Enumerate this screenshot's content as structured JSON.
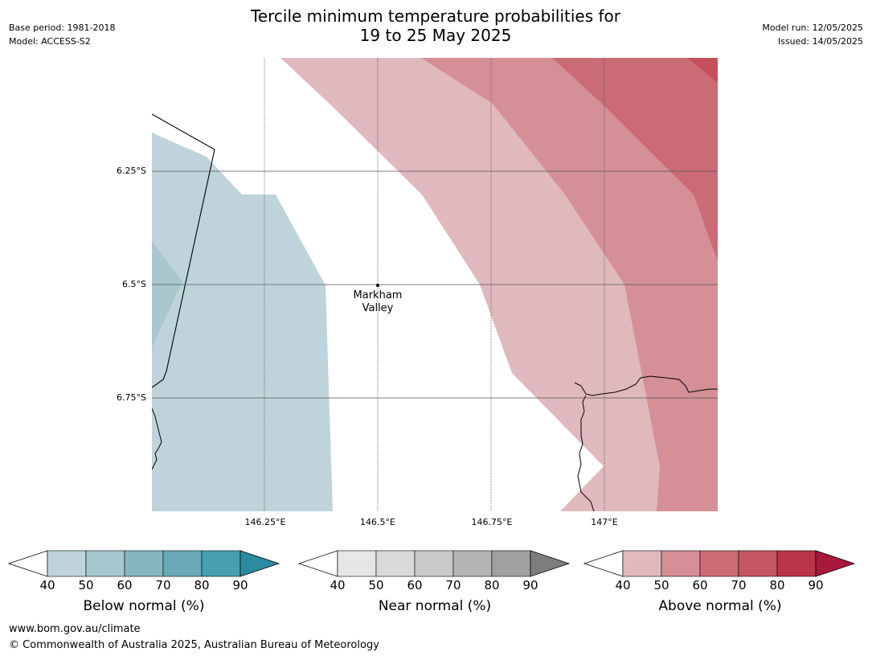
{
  "title": {
    "line1": "Tercile minimum temperature probabilities for",
    "line2": "19 to 25 May 2025"
  },
  "meta_left": {
    "base_period": "Base period: 1981-2018",
    "model": "Model: ACCESS-S2"
  },
  "meta_right": {
    "model_run": "Model run: 12/05/2025",
    "issued": "Issued: 14/05/2025"
  },
  "map": {
    "lat_labels": [
      "6.25°S",
      "6.5°S",
      "6.75°S"
    ],
    "lon_labels": [
      "146.25°E",
      "146.5°E",
      "146.75°E",
      "147°E"
    ],
    "place": {
      "line1": "Markham",
      "line2": "Valley"
    }
  },
  "colorbars": [
    {
      "label": "Below normal (%)",
      "ticks": [
        "40",
        "50",
        "60",
        "70",
        "80",
        "90"
      ],
      "colors": [
        "#bed4da",
        "#a6c7cd",
        "#87b6bf",
        "#6aaab8",
        "#47a0b0",
        "#2a8c9e"
      ]
    },
    {
      "label": "Near normal (%)",
      "ticks": [
        "40",
        "50",
        "60",
        "70",
        "80",
        "90"
      ],
      "colors": [
        "#e6e6e6",
        "#d9d9d9",
        "#c9c9c9",
        "#b4b4b4",
        "#a0a0a0",
        "#7d7d7d"
      ]
    },
    {
      "label": "Above normal (%)",
      "ticks": [
        "40",
        "50",
        "60",
        "70",
        "80",
        "90"
      ],
      "colors": [
        "#e0b9bd",
        "#d58f96",
        "#cc6b74",
        "#c45662",
        "#bb3448",
        "#a8183a"
      ]
    }
  ],
  "footer": {
    "url": "www.bom.gov.au/climate",
    "copyright": "© Commonwealth of Australia 2025, Australian Bureau of Meteorology"
  }
}
